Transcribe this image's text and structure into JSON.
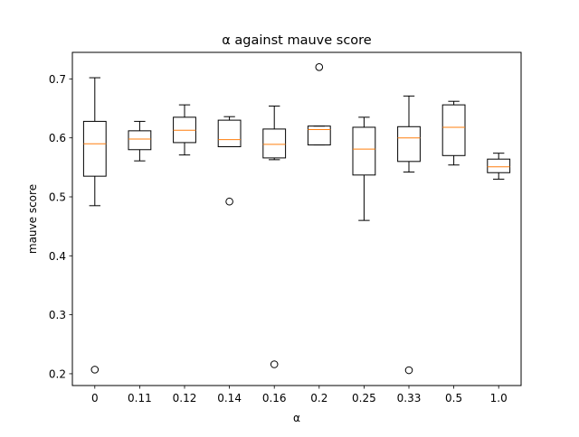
{
  "chart_data": {
    "type": "boxplot",
    "title": "α against mauve score",
    "xlabel": "α",
    "ylabel": "mauve score",
    "ylim": [
      0.18,
      0.745
    ],
    "yticks": [
      0.2,
      0.3,
      0.4,
      0.5,
      0.6,
      0.7
    ],
    "ytick_labels": [
      "0.2",
      "0.3",
      "0.4",
      "0.5",
      "0.6",
      "0.7"
    ],
    "categories": [
      "0",
      "0.11",
      "0.12",
      "0.14",
      "0.16",
      "0.2",
      "0.25",
      "0.33",
      "0.5",
      "1.0"
    ],
    "boxes": [
      {
        "whislo": 0.485,
        "q1": 0.535,
        "med": 0.59,
        "q3": 0.628,
        "whishi": 0.702,
        "fliers": [
          0.207
        ]
      },
      {
        "whislo": 0.561,
        "q1": 0.58,
        "med": 0.598,
        "q3": 0.612,
        "whishi": 0.628,
        "fliers": []
      },
      {
        "whislo": 0.571,
        "q1": 0.592,
        "med": 0.613,
        "q3": 0.635,
        "whishi": 0.656,
        "fliers": []
      },
      {
        "whislo": 0.585,
        "q1": 0.585,
        "med": 0.597,
        "q3": 0.63,
        "whishi": 0.636,
        "fliers": [
          0.492
        ]
      },
      {
        "whislo": 0.563,
        "q1": 0.566,
        "med": 0.589,
        "q3": 0.615,
        "whishi": 0.654,
        "fliers": [
          0.216
        ]
      },
      {
        "whislo": 0.588,
        "q1": 0.588,
        "med": 0.614,
        "q3": 0.62,
        "whishi": 0.62,
        "fliers": [
          0.72
        ]
      },
      {
        "whislo": 0.46,
        "q1": 0.537,
        "med": 0.581,
        "q3": 0.618,
        "whishi": 0.635,
        "fliers": []
      },
      {
        "whislo": 0.542,
        "q1": 0.56,
        "med": 0.6,
        "q3": 0.619,
        "whishi": 0.671,
        "fliers": [
          0.206
        ]
      },
      {
        "whislo": 0.554,
        "q1": 0.57,
        "med": 0.618,
        "q3": 0.656,
        "whishi": 0.662,
        "fliers": []
      },
      {
        "whislo": 0.53,
        "q1": 0.541,
        "med": 0.551,
        "q3": 0.564,
        "whishi": 0.574,
        "fliers": []
      }
    ],
    "grid": false,
    "colors": {
      "box": "#000000",
      "median": "#ff7f0e",
      "flier": "#000000",
      "background": "#ffffff"
    }
  }
}
